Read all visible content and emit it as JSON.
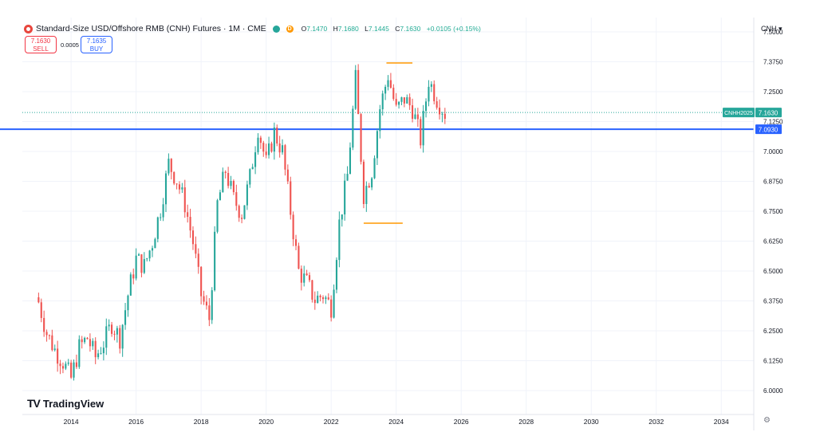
{
  "header": {
    "title": "Standard-Size USD/Offshore RMB (CNH) Futures · 1M · CME",
    "status_letter": "D",
    "ohlc": [
      {
        "k": "O",
        "v": "7.1470"
      },
      {
        "k": "H",
        "v": "7.1680"
      },
      {
        "k": "L",
        "v": "7.1445"
      },
      {
        "k": "C",
        "v": "7.1630"
      },
      {
        "k": "",
        "v": "+0.0105 (+0.15%)"
      }
    ]
  },
  "trade": {
    "sell_price": "7.1630",
    "sell_label": "SELL",
    "spread": "0.0005",
    "buy_price": "7.1635",
    "buy_label": "BUY"
  },
  "currency_label": "CNH",
  "logo_text": "TradingView",
  "symbol_tag": "CNHH2025",
  "price_tag": "7.1630",
  "line_tag": "7.0930",
  "colors": {
    "up": "#26a69a",
    "down": "#ef5350",
    "hline": "#2962ff",
    "marker": "#ff9800",
    "grid": "#f0f3fa"
  },
  "chart_data": {
    "type": "candlestick",
    "interval": "1M",
    "y_range": [
      5.9,
      7.56
    ],
    "x_range": [
      2012.5,
      2035.0
    ],
    "y_ticks": [
      "7.5000",
      "7.3750",
      "7.2500",
      "7.1250",
      "7.0000",
      "6.8750",
      "6.7500",
      "6.6250",
      "6.5000",
      "6.3750",
      "6.2500",
      "6.1250",
      "6.0000"
    ],
    "x_ticks": [
      "2014",
      "2016",
      "2018",
      "2020",
      "2022",
      "2024",
      "2026",
      "2028",
      "2030",
      "2032",
      "2034"
    ],
    "last_price": 7.163,
    "horizontal_line": 7.093,
    "markers": [
      {
        "price": 7.37,
        "from": 2023.7,
        "to": 2024.5
      },
      {
        "price": 6.7,
        "from": 2023.0,
        "to": 2024.2
      }
    ],
    "closes": [
      [
        "2013-01",
        6.37
      ],
      [
        "2013-04",
        6.24
      ],
      [
        "2013-07",
        6.17
      ],
      [
        "2013-10",
        6.12
      ],
      [
        "2014-01",
        6.05
      ],
      [
        "2014-04",
        6.18
      ],
      [
        "2014-07",
        6.22
      ],
      [
        "2014-10",
        6.14
      ],
      [
        "2015-01",
        6.2
      ],
      [
        "2015-04",
        6.28
      ],
      [
        "2015-07",
        6.22
      ],
      [
        "2015-10",
        6.4
      ],
      [
        "2016-01",
        6.55
      ],
      [
        "2016-04",
        6.52
      ],
      [
        "2016-07",
        6.62
      ],
      [
        "2016-10",
        6.76
      ],
      [
        "2017-01",
        6.95
      ],
      [
        "2017-04",
        6.88
      ],
      [
        "2017-07",
        6.78
      ],
      [
        "2017-10",
        6.62
      ],
      [
        "2018-01",
        6.4
      ],
      [
        "2018-04",
        6.3
      ],
      [
        "2018-07",
        6.78
      ],
      [
        "2018-10",
        6.92
      ],
      [
        "2019-01",
        6.8
      ],
      [
        "2019-04",
        6.74
      ],
      [
        "2019-07",
        6.89
      ],
      [
        "2019-10",
        7.1
      ],
      [
        "2020-01",
        6.95
      ],
      [
        "2020-04",
        7.08
      ],
      [
        "2020-07",
        7.0
      ],
      [
        "2020-10",
        6.75
      ],
      [
        "2021-01",
        6.5
      ],
      [
        "2021-04",
        6.45
      ],
      [
        "2021-07",
        6.38
      ],
      [
        "2021-10",
        6.4
      ],
      [
        "2022-01",
        6.35
      ],
      [
        "2022-04",
        6.7
      ],
      [
        "2022-07",
        6.9
      ],
      [
        "2022-10",
        7.3
      ],
      [
        "2023-01",
        6.82
      ],
      [
        "2023-04",
        6.92
      ],
      [
        "2023-07",
        7.18
      ],
      [
        "2023-10",
        7.32
      ],
      [
        "2024-01",
        7.17
      ],
      [
        "2024-04",
        7.22
      ],
      [
        "2024-07",
        7.18
      ],
      [
        "2024-10",
        7.05
      ],
      [
        "2025-01",
        7.3
      ],
      [
        "2025-04",
        7.22
      ],
      [
        "2025-07",
        7.16
      ]
    ]
  }
}
